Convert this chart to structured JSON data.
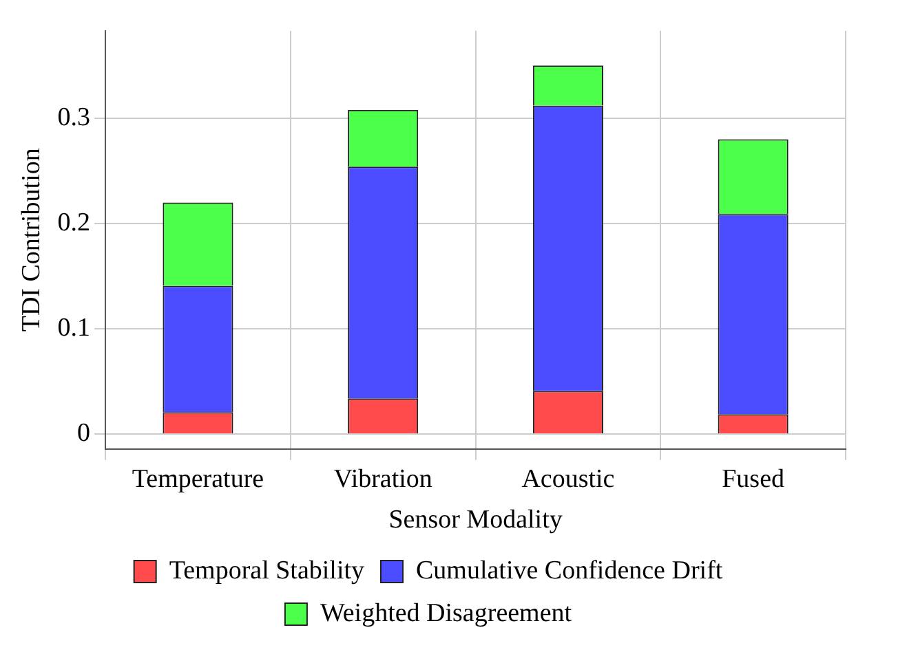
{
  "chart_data": {
    "type": "bar",
    "stacked": true,
    "xlabel": "Sensor Modality",
    "ylabel": "TDI Contribution",
    "categories": [
      "Temperature",
      "Vibration",
      "Acoustic",
      "Fused"
    ],
    "series": [
      {
        "name": "Temporal Stability",
        "color": "#ff4b4b",
        "values": [
          0.021,
          0.034,
          0.041,
          0.019
        ]
      },
      {
        "name": "Cumulative Confidence Drift",
        "color": "#4b4bff",
        "values": [
          0.12,
          0.22,
          0.271,
          0.19
        ]
      },
      {
        "name": "Weighted Disagreement",
        "color": "#4bff4b",
        "values": [
          0.079,
          0.054,
          0.038,
          0.071
        ]
      }
    ],
    "ylim": [
      -0.014,
      0.383
    ],
    "yticks": [
      0,
      0.1,
      0.2,
      0.3
    ],
    "grid": true,
    "legend": "bottom"
  }
}
